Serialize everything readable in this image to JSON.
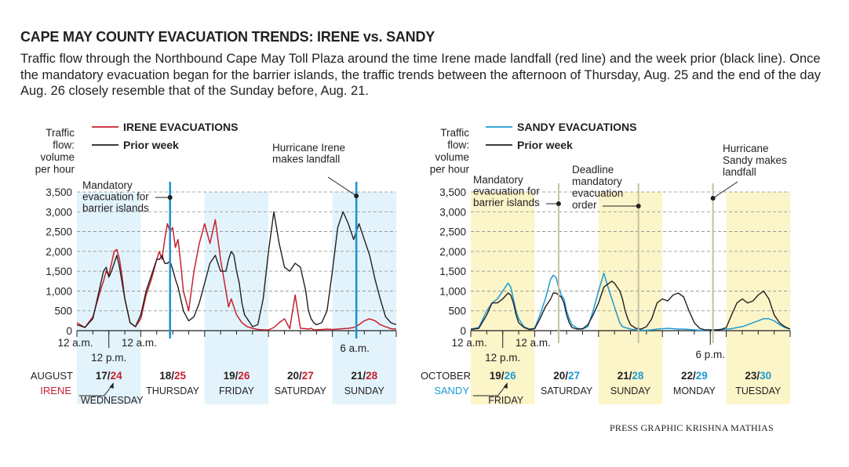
{
  "title": "CAPE MAY COUNTY EVACUATION TRENDS: IRENE vs. SANDY",
  "subtitle": "Traffic flow through the Northbound Cape May Toll Plaza around the time Irene made landfall (red line) and the week prior (black line). Once the mandatory evacuation began for the barrier islands, the traffic trends between the afternoon of Thursday, Aug. 25 and the end of the day Aug. 26 closely resemble that of the Sunday before, Aug. 21.",
  "credit": "PRESS GRAPHIC KRISHNA MATHIAS",
  "colors": {
    "irene": "#c8202f",
    "sandy": "#1d9bd5",
    "prior": "#231f20",
    "irene_band": "#e2f3fb",
    "sandy_band": "#fbf5c9",
    "marker_irene": "#1f8fd0",
    "marker_sandy": "#c9c0a0"
  },
  "chart_data": [
    {
      "type": "line",
      "ylabel": [
        "Traffic",
        "flow:",
        "volume",
        "per hour"
      ],
      "ylim": [
        0,
        3500
      ],
      "yticks": [
        "3,500",
        "3,000",
        "2,500",
        "2,000",
        "1,500",
        "1,000",
        "500",
        "0"
      ],
      "grid": true,
      "legend": {
        "placement": "top-left",
        "entries": [
          "IRENE EVACUATIONS",
          "Prior week"
        ]
      },
      "series": [
        {
          "name": "IRENE EVACUATIONS",
          "color": "#c8202f",
          "x_hours": [
            0,
            3,
            6,
            9,
            10,
            11,
            12,
            13,
            14,
            15,
            16,
            17,
            18,
            20,
            22,
            24,
            26,
            28,
            29,
            30,
            31,
            32,
            33,
            34,
            35,
            36,
            37,
            38,
            39,
            40,
            42,
            44,
            46,
            48,
            50,
            52,
            54,
            56,
            57,
            58,
            59,
            60,
            61,
            62,
            63,
            64,
            66,
            68,
            70,
            72,
            74,
            76,
            78,
            80,
            82,
            84,
            86,
            87,
            88,
            89,
            90,
            92,
            94,
            96,
            98,
            100,
            102,
            104,
            106,
            108,
            110,
            112,
            114,
            116,
            118,
            120
          ],
          "values": [
            200,
            80,
            350,
            1050,
            1250,
            1500,
            1400,
            1700,
            2000,
            2050,
            1800,
            1350,
            800,
            200,
            100,
            300,
            900,
            1300,
            1550,
            1800,
            2000,
            1800,
            2300,
            2700,
            2500,
            2600,
            2100,
            2300,
            1700,
            1000,
            500,
            1500,
            2200,
            2700,
            2200,
            2800,
            1800,
            1000,
            600,
            800,
            600,
            400,
            300,
            200,
            150,
            100,
            60,
            30,
            20,
            20,
            80,
            200,
            300,
            50,
            900,
            60,
            50,
            40,
            60,
            20,
            20,
            30,
            40,
            30,
            40,
            50,
            60,
            80,
            150,
            250,
            300,
            250,
            150,
            100,
            50,
            40
          ]
        },
        {
          "name": "Prior week",
          "color": "#231f20",
          "x_hours": [
            0,
            3,
            6,
            9,
            10,
            11,
            12,
            13,
            14,
            15,
            16,
            17,
            18,
            20,
            22,
            24,
            26,
            28,
            29,
            30,
            31,
            32,
            33,
            34,
            35,
            36,
            37,
            38,
            39,
            40,
            42,
            44,
            46,
            48,
            50,
            52,
            54,
            56,
            57,
            58,
            59,
            60,
            61,
            62,
            63,
            64,
            66,
            68,
            70,
            72,
            74,
            76,
            78,
            80,
            82,
            84,
            86,
            87,
            88,
            89,
            90,
            92,
            94,
            96,
            98,
            100,
            102,
            104,
            106,
            108,
            110,
            112,
            114,
            116,
            118,
            120
          ],
          "values": [
            150,
            80,
            300,
            1200,
            1500,
            1600,
            1350,
            1500,
            1700,
            1900,
            1600,
            1200,
            800,
            200,
            100,
            400,
            1000,
            1400,
            1600,
            1800,
            1800,
            1900,
            1700,
            1700,
            1750,
            1550,
            1300,
            1100,
            800,
            500,
            250,
            350,
            700,
            1200,
            1700,
            1900,
            1500,
            1500,
            1800,
            2000,
            1900,
            1500,
            1200,
            700,
            400,
            300,
            100,
            150,
            800,
            2000,
            3000,
            2200,
            1600,
            1500,
            1700,
            1600,
            1000,
            500,
            300,
            200,
            150,
            200,
            500,
            1500,
            2600,
            3000,
            2700,
            2300,
            2700,
            2300,
            1900,
            1300,
            800,
            350,
            200,
            150
          ]
        }
      ]
    },
    {
      "type": "line",
      "ylabel": [
        "Traffic",
        "flow:",
        "volume",
        "per hour"
      ],
      "ylim": [
        0,
        3500
      ],
      "yticks": [
        "3,500",
        "3,000",
        "2,500",
        "2,000",
        "1,500",
        "1,000",
        "500",
        "0"
      ],
      "grid": true,
      "legend": {
        "placement": "top-left",
        "entries": [
          "SANDY EVACUATIONS",
          "Prior week"
        ]
      },
      "series": [
        {
          "name": "SANDY EVACUATIONS",
          "color": "#1d9bd5",
          "x_hours": [
            0,
            3,
            6,
            8,
            10,
            12,
            14,
            15,
            16,
            17,
            18,
            20,
            22,
            24,
            26,
            28,
            30,
            31,
            32,
            33,
            34,
            35,
            36,
            37,
            38,
            40,
            42,
            44,
            46,
            48,
            50,
            52,
            53,
            54,
            55,
            56,
            57,
            58,
            59,
            60,
            62,
            64,
            66,
            68,
            70,
            72,
            74,
            76,
            78,
            80,
            82,
            84,
            86,
            88,
            90,
            92,
            94,
            96,
            98,
            100,
            102,
            104,
            106,
            108,
            110,
            112,
            114,
            116,
            118,
            120
          ],
          "values": [
            40,
            80,
            500,
            700,
            800,
            1000,
            1200,
            1100,
            800,
            500,
            300,
            100,
            40,
            60,
            400,
            800,
            1300,
            1400,
            1350,
            1100,
            900,
            800,
            500,
            300,
            150,
            60,
            40,
            100,
            500,
            1000,
            1450,
            1000,
            800,
            600,
            400,
            200,
            100,
            80,
            60,
            40,
            20,
            10,
            10,
            20,
            40,
            50,
            60,
            50,
            40,
            40,
            30,
            20,
            10,
            10,
            10,
            20,
            30,
            40,
            50,
            80,
            100,
            150,
            200,
            250,
            300,
            300,
            250,
            150,
            80,
            40
          ]
        },
        {
          "name": "Prior week",
          "color": "#231f20",
          "x_hours": [
            0,
            3,
            6,
            8,
            10,
            12,
            14,
            15,
            16,
            17,
            18,
            20,
            22,
            24,
            26,
            28,
            30,
            31,
            32,
            33,
            34,
            35,
            36,
            37,
            38,
            40,
            42,
            44,
            46,
            48,
            50,
            52,
            53,
            54,
            55,
            56,
            57,
            58,
            59,
            60,
            62,
            64,
            66,
            68,
            70,
            72,
            74,
            76,
            78,
            80,
            82,
            84,
            86,
            88,
            90,
            92,
            94,
            96,
            98,
            100,
            102,
            104,
            106,
            108,
            110,
            112,
            114,
            116,
            118,
            120
          ],
          "values": [
            30,
            60,
            400,
            700,
            700,
            800,
            950,
            900,
            700,
            400,
            200,
            80,
            30,
            50,
            300,
            600,
            800,
            950,
            950,
            900,
            850,
            700,
            400,
            200,
            80,
            40,
            50,
            150,
            400,
            700,
            1100,
            1200,
            1250,
            1200,
            1100,
            1000,
            800,
            500,
            300,
            150,
            60,
            40,
            100,
            300,
            700,
            800,
            750,
            900,
            950,
            850,
            500,
            200,
            60,
            20,
            20,
            20,
            30,
            80,
            400,
            700,
            800,
            700,
            750,
            900,
            1000,
            800,
            400,
            200,
            100,
            40
          ]
        }
      ]
    }
  ],
  "irene": {
    "legend_series": "IRENE EVACUATIONS",
    "legend_prior": "Prior week",
    "xlabel_left": "12 a.m.",
    "xlabel_mid": "12 a.m.",
    "xlabel_noon": "12 p.m.",
    "xlabel_6am": "6 a.m.",
    "month": "AUGUST",
    "series_label": "IRENE",
    "annotation_evac": [
      "Mandatory",
      "evacuation for",
      "barrier islands"
    ],
    "annotation_landfall": [
      "Hurricane Irene",
      "makes landfall"
    ],
    "days": [
      {
        "prior": "17/",
        "current": "24",
        "name": "WEDNESDAY"
      },
      {
        "prior": "18/",
        "current": "25",
        "name": "THURSDAY"
      },
      {
        "prior": "19/",
        "current": "26",
        "name": "FRIDAY"
      },
      {
        "prior": "20/",
        "current": "27",
        "name": "SATURDAY"
      },
      {
        "prior": "21/",
        "current": "28",
        "name": "SUNDAY"
      }
    ]
  },
  "sandy": {
    "legend_series": "SANDY EVACUATIONS",
    "legend_prior": "Prior week",
    "xlabel_left": "12 a.m.",
    "xlabel_mid": "12 a.m.",
    "xlabel_noon": "12 p.m.",
    "xlabel_6pm": "6 p.m.",
    "month": "OCTOBER",
    "series_label": "SANDY",
    "annotation_evac": [
      "Mandatory",
      "evacuation for",
      "barrier islands"
    ],
    "annotation_deadline": [
      "Deadline",
      "mandatory",
      "evacuation",
      "order"
    ],
    "annotation_landfall": [
      "Hurricane",
      "Sandy makes",
      "landfall"
    ],
    "days": [
      {
        "prior": "19/",
        "current": "26",
        "name": "FRIDAY"
      },
      {
        "prior": "20/",
        "current": "27",
        "name": "SATURDAY"
      },
      {
        "prior": "21/",
        "current": "28",
        "name": "SUNDAY"
      },
      {
        "prior": "22/",
        "current": "29",
        "name": "MONDAY"
      },
      {
        "prior": "23/",
        "current": "30",
        "name": "TUESDAY"
      }
    ]
  }
}
